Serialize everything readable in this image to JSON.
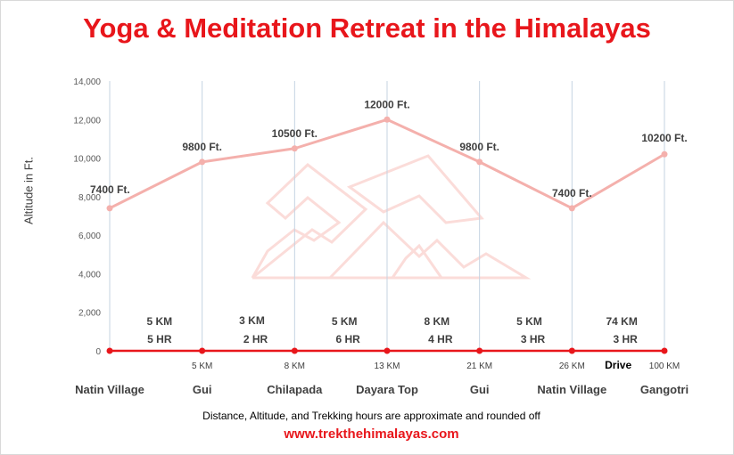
{
  "chart_data": {
    "type": "line",
    "title": "Yoga & Meditation Retreat in the Himalayas",
    "ylabel": "Altitude in Ft.",
    "ylim": [
      0,
      14000
    ],
    "yticks": [
      "0",
      "2,000",
      "4,000",
      "6,000",
      "8,000",
      "10,000",
      "12,000",
      "14,000"
    ],
    "grid": "vertical",
    "places": [
      "Natin Village",
      "Gui",
      "Chilapada",
      "Dayara Top",
      "Gui",
      "Natin Village",
      "Gangotri"
    ],
    "distances": [
      "",
      "5 KM",
      "8 KM",
      "13 KM",
      "21 KM",
      "26 KM",
      "100 KM"
    ],
    "series": [
      {
        "values": [
          7400,
          9800,
          10500,
          12000,
          9800,
          7400,
          10200
        ],
        "labels": [
          "7400 Ft.",
          "9800 Ft.",
          "10500 Ft.",
          "12000 Ft.",
          "9800 Ft.",
          "7400 Ft.",
          "10200 Ft."
        ],
        "color": "#f4b0ac"
      },
      {
        "values": [
          0,
          0,
          0,
          0,
          0,
          0,
          0
        ],
        "color": "#e8161b"
      }
    ],
    "segments": [
      {
        "distance": "5 KM",
        "time": "5 HR"
      },
      {
        "distance": "3 KM",
        "time": "2 HR"
      },
      {
        "distance": "5 KM",
        "time": "6 HR"
      },
      {
        "distance": "8 KM",
        "time": "4 HR"
      },
      {
        "distance": "5 KM",
        "time": "3 HR"
      },
      {
        "distance": "74 KM",
        "time": "3 HR"
      }
    ],
    "drive_label": "Drive"
  },
  "footer": {
    "note": "Distance, Altitude, and Trekking hours are approximate and rounded off",
    "url": "www.trekthehimalayas.com"
  },
  "colors": {
    "title": "#e8161b",
    "altitude_line": "#f4b0ac",
    "base_line": "#e8161b",
    "gridline": "#c5d3e2",
    "watermark": "#fbdcd9"
  }
}
